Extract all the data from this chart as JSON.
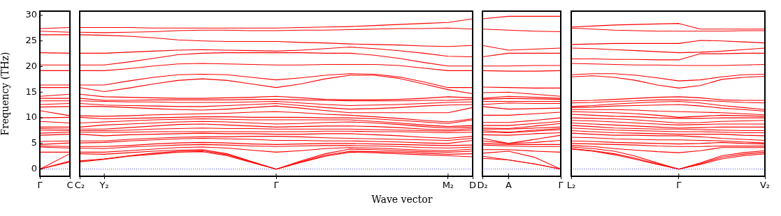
{
  "chart_data": [
    {
      "type": "line",
      "ylabel": "Frequency (THz)",
      "categories": [
        "Γ",
        "C"
      ],
      "ylim": [
        -1.4,
        30.8
      ],
      "yticks": [
        0,
        5,
        10,
        15,
        20,
        25,
        30
      ],
      "ref_lines": [
        {
          "axis": "y",
          "value": 0,
          "color": "#0000ff",
          "line_style": "dotted"
        }
      ],
      "series": [
        {
          "color": "#ff0000",
          "values": [
            27.4,
            27.6
          ]
        },
        {
          "color": "#ff0000",
          "values": [
            26.9,
            26.7
          ]
        },
        {
          "color": "#ff0000",
          "values": [
            26.2,
            26.2
          ]
        },
        {
          "color": "#ff0000",
          "values": [
            22.7,
            22.6
          ]
        },
        {
          "color": "#ff0000",
          "values": [
            20.3,
            20.3
          ]
        },
        {
          "color": "#ff0000",
          "values": [
            19.2,
            19.2
          ]
        },
        {
          "color": "#ff0000",
          "values": [
            16.4,
            16.4
          ]
        },
        {
          "color": "#ff0000",
          "values": [
            15.9,
            15.9
          ]
        },
        {
          "color": "#ff0000",
          "values": [
            14.2,
            14.6
          ]
        },
        {
          "color": "#ff0000",
          "values": [
            13.8,
            13.8
          ]
        },
        {
          "color": "#ff0000",
          "values": [
            13.3,
            13.3
          ]
        },
        {
          "color": "#ff0000",
          "values": [
            12.6,
            12.8
          ]
        },
        {
          "color": "#ff0000",
          "values": [
            12.1,
            12.2
          ]
        },
        {
          "color": "#ff0000",
          "values": [
            11.4,
            10.4
          ]
        },
        {
          "color": "#ff0000",
          "values": [
            10.0,
            10.1
          ]
        },
        {
          "color": "#ff0000",
          "values": [
            9.3,
            9.0
          ]
        },
        {
          "color": "#ff0000",
          "values": [
            8.2,
            8.2
          ]
        },
        {
          "color": "#ff0000",
          "values": [
            7.9,
            7.8
          ]
        },
        {
          "color": "#ff0000",
          "values": [
            7.6,
            7.5
          ]
        },
        {
          "color": "#ff0000",
          "values": [
            7.0,
            7.2
          ]
        },
        {
          "color": "#ff0000",
          "values": [
            6.6,
            6.8
          ]
        },
        {
          "color": "#ff0000",
          "values": [
            5.4,
            5.5
          ]
        },
        {
          "color": "#ff0000",
          "values": [
            4.8,
            5.1
          ]
        },
        {
          "color": "#ff0000",
          "values": [
            4.5,
            4.4
          ]
        },
        {
          "color": "#ff0000",
          "values": [
            4.3,
            4.1
          ]
        },
        {
          "color": "#ff0000",
          "values": [
            3.3,
            3.3
          ]
        },
        {
          "color": "#ff0000",
          "values": [
            0,
            3.0
          ]
        },
        {
          "color": "#ff0000",
          "values": [
            0,
            1.6
          ]
        },
        {
          "color": "#ff0000",
          "values": [
            0,
            1.4
          ]
        }
      ]
    },
    {
      "type": "line",
      "xlabel": "Wave vector",
      "tick_labels": "x",
      "categories": [
        "C₂",
        "Y₂",
        null,
        null,
        null,
        null,
        null,
        null,
        "Γ",
        null,
        null,
        null,
        null,
        null,
        null,
        "M₂",
        "D"
      ],
      "ylim": [
        -1.4,
        30.8
      ],
      "yticks": [
        0,
        5,
        10,
        15,
        20,
        25,
        30
      ],
      "ref_lines": [
        {
          "axis": "y",
          "value": 0,
          "color": "#0000ff",
          "line_style": "dotted"
        }
      ],
      "series": [
        {
          "color": "#ff0000",
          "values": [
            27.6,
            27.6,
            27.6,
            27.5,
            27.5,
            27.5,
            27.5,
            27.5,
            27.5,
            27.6,
            27.7,
            27.8,
            28.0,
            28.2,
            28.4,
            28.6,
            29.3
          ]
        },
        {
          "color": "#ff0000",
          "values": [
            26.7,
            26.6,
            26.7,
            26.8,
            27.0,
            27.1,
            27.1,
            27.0,
            27.0,
            27.1,
            27.1,
            27.2,
            27.3,
            27.4,
            27.4,
            27.5,
            27.3
          ]
        },
        {
          "color": "#ff0000",
          "values": [
            26.2,
            26.1,
            25.9,
            25.6,
            25.2,
            25.0,
            24.9,
            24.9,
            24.9,
            24.7,
            24.6,
            24.4,
            24.3,
            24.2,
            24.0,
            23.9,
            24.1
          ]
        },
        {
          "color": "#ff0000",
          "values": [
            22.6,
            22.6,
            22.8,
            23.0,
            23.2,
            23.3,
            23.2,
            23.1,
            23.0,
            23.2,
            23.5,
            23.8,
            23.5,
            23.1,
            22.6,
            22.0,
            21.9
          ]
        },
        {
          "color": "#ff0000",
          "values": [
            20.3,
            20.3,
            20.9,
            21.6,
            22.3,
            22.6,
            22.7,
            22.7,
            22.7,
            22.7,
            22.6,
            22.6,
            22.2,
            21.6,
            20.8,
            20.1,
            20.1
          ]
        },
        {
          "color": "#ff0000",
          "values": [
            19.2,
            19.2,
            19.6,
            20.1,
            20.5,
            20.6,
            20.5,
            20.4,
            20.3,
            20.3,
            20.4,
            20.4,
            20.4,
            20.2,
            19.7,
            19.2,
            19.2
          ]
        },
        {
          "color": "#ff0000",
          "values": [
            16.4,
            16.4,
            17.2,
            17.9,
            18.4,
            18.5,
            18.4,
            17.9,
            17.4,
            17.8,
            18.3,
            18.6,
            18.5,
            18.0,
            17.0,
            15.9,
            15.9
          ]
        },
        {
          "color": "#ff0000",
          "values": [
            15.9,
            15.1,
            15.8,
            16.6,
            17.3,
            17.6,
            17.3,
            16.6,
            15.9,
            16.6,
            17.6,
            18.3,
            18.3,
            17.7,
            16.6,
            15.5,
            14.7
          ]
        },
        {
          "color": "#ff0000",
          "values": [
            14.6,
            14.1,
            14.0,
            13.9,
            13.8,
            13.8,
            13.9,
            14.0,
            14.2,
            13.9,
            13.6,
            13.5,
            13.5,
            13.6,
            13.8,
            14.1,
            13.9
          ]
        },
        {
          "color": "#ff0000",
          "values": [
            13.8,
            13.4,
            13.4,
            13.5,
            13.5,
            13.5,
            13.5,
            13.6,
            13.6,
            13.5,
            13.4,
            13.3,
            13.3,
            13.3,
            13.4,
            13.4,
            13.6
          ]
        },
        {
          "color": "#ff0000",
          "values": [
            13.3,
            13.2,
            13.1,
            13.1,
            13.0,
            13.0,
            13.0,
            13.1,
            13.2,
            12.9,
            12.6,
            12.4,
            12.5,
            12.6,
            12.8,
            13.0,
            13.1
          ]
        },
        {
          "color": "#ff0000",
          "values": [
            12.8,
            12.5,
            12.4,
            12.3,
            12.2,
            12.2,
            12.4,
            12.6,
            12.8,
            12.4,
            12.0,
            11.7,
            11.8,
            12.0,
            12.3,
            12.5,
            12.6
          ]
        },
        {
          "color": "#ff0000",
          "values": [
            12.2,
            12.2,
            12.0,
            11.8,
            11.6,
            11.5,
            11.7,
            12.0,
            12.3,
            11.9,
            11.4,
            11.0,
            11.0,
            11.0,
            11.0,
            11.0,
            12.0
          ]
        },
        {
          "color": "#ff0000",
          "values": [
            10.4,
            10.3,
            10.4,
            10.6,
            10.7,
            10.8,
            10.9,
            11.1,
            11.2,
            11.0,
            10.7,
            10.5,
            10.2,
            9.9,
            9.5,
            9.2,
            9.8
          ]
        },
        {
          "color": "#ff0000",
          "values": [
            10.1,
            9.8,
            9.9,
            10.0,
            10.1,
            10.2,
            10.2,
            10.1,
            10.1,
            10.1,
            10.0,
            10.0,
            9.8,
            9.5,
            9.2,
            8.9,
            9.6
          ]
        },
        {
          "color": "#ff0000",
          "values": [
            9.0,
            9.2,
            9.4,
            9.6,
            9.7,
            9.8,
            9.7,
            9.6,
            9.6,
            9.6,
            9.6,
            9.6,
            9.3,
            9.0,
            8.6,
            8.3,
            8.5
          ]
        },
        {
          "color": "#ff0000",
          "values": [
            8.2,
            8.6,
            8.8,
            9.0,
            9.2,
            9.3,
            9.2,
            9.0,
            8.8,
            8.9,
            9.1,
            9.2,
            9.0,
            8.7,
            8.3,
            8.0,
            8.2
          ]
        },
        {
          "color": "#ff0000",
          "values": [
            7.8,
            7.8,
            8.1,
            8.4,
            8.7,
            8.8,
            8.6,
            8.4,
            8.2,
            8.3,
            8.4,
            8.4,
            8.3,
            8.1,
            7.8,
            7.6,
            7.9
          ]
        },
        {
          "color": "#ff0000",
          "values": [
            7.5,
            7.5,
            7.6,
            7.8,
            7.9,
            8.0,
            7.9,
            7.9,
            7.8,
            7.8,
            7.8,
            7.8,
            7.7,
            7.6,
            7.5,
            7.4,
            7.6
          ]
        },
        {
          "color": "#ff0000",
          "values": [
            7.2,
            7.2,
            7.2,
            7.3,
            7.3,
            7.3,
            7.3,
            7.3,
            7.3,
            7.3,
            7.4,
            7.4,
            7.3,
            7.3,
            7.2,
            7.1,
            7.2
          ]
        },
        {
          "color": "#ff0000",
          "values": [
            6.8,
            6.5,
            6.7,
            6.8,
            6.9,
            7.0,
            6.9,
            6.9,
            6.8,
            6.8,
            6.9,
            6.9,
            6.7,
            6.5,
            6.2,
            6.0,
            6.4
          ]
        },
        {
          "color": "#ff0000",
          "values": [
            5.5,
            5.5,
            5.8,
            6.0,
            6.2,
            6.3,
            6.3,
            6.4,
            6.4,
            6.3,
            6.1,
            6.0,
            5.9,
            5.8,
            5.7,
            5.6,
            6.0
          ]
        },
        {
          "color": "#ff0000",
          "values": [
            5.1,
            5.2,
            5.5,
            5.7,
            5.9,
            6.0,
            5.9,
            5.8,
            5.6,
            5.6,
            5.5,
            5.5,
            5.4,
            5.3,
            5.1,
            5.0,
            5.6
          ]
        },
        {
          "color": "#ff0000",
          "values": [
            4.4,
            4.4,
            4.6,
            4.9,
            5.1,
            5.2,
            5.1,
            4.9,
            4.8,
            4.9,
            5.0,
            5.0,
            4.9,
            4.8,
            4.7,
            4.6,
            4.7
          ]
        },
        {
          "color": "#ff0000",
          "values": [
            4.1,
            4.0,
            4.3,
            4.5,
            4.7,
            4.8,
            4.7,
            4.5,
            4.4,
            4.5,
            4.6,
            4.6,
            4.5,
            4.4,
            4.2,
            4.1,
            4.3
          ]
        },
        {
          "color": "#ff0000",
          "values": [
            3.3,
            3.3,
            3.6,
            3.9,
            4.2,
            4.3,
            4.1,
            3.7,
            3.3,
            3.6,
            4.0,
            4.2,
            4.1,
            3.9,
            3.7,
            3.6,
            3.9
          ]
        },
        {
          "color": "#ff0000",
          "values": [
            3.0,
            2.9,
            3.2,
            3.5,
            3.7,
            3.8,
            3.0,
            1.5,
            0,
            1.6,
            3.0,
            3.9,
            3.8,
            3.6,
            3.4,
            3.3,
            3.5
          ]
        },
        {
          "color": "#ff0000",
          "values": [
            1.6,
            2.0,
            2.6,
            3.1,
            3.5,
            3.6,
            2.8,
            1.4,
            0,
            1.4,
            2.7,
            3.5,
            3.4,
            3.3,
            3.1,
            2.9,
            3.0
          ]
        },
        {
          "color": "#ff0000",
          "values": [
            1.4,
            1.9,
            2.5,
            2.9,
            3.3,
            3.4,
            2.6,
            1.3,
            0,
            1.3,
            2.5,
            3.3,
            3.2,
            3.0,
            2.8,
            2.6,
            2.4
          ]
        }
      ]
    },
    {
      "type": "line",
      "tick_labels": "x",
      "categories": [
        "D₂",
        "A",
        null,
        "Γ"
      ],
      "ylim": [
        -1.4,
        30.8
      ],
      "yticks": [
        0,
        5,
        10,
        15,
        20,
        25,
        30
      ],
      "ref_lines": [
        {
          "axis": "y",
          "value": 0,
          "color": "#0000ff",
          "line_style": "dotted"
        }
      ],
      "series": [
        {
          "color": "#ff0000",
          "values": [
            29.3,
            29.8,
            29.8,
            29.8
          ]
        },
        {
          "color": "#ff0000",
          "values": [
            27.3,
            27.1,
            26.9,
            26.8
          ]
        },
        {
          "color": "#ff0000",
          "values": [
            24.1,
            23.2,
            23.4,
            23.6
          ]
        },
        {
          "color": "#ff0000",
          "values": [
            21.9,
            22.6,
            22.6,
            22.6
          ]
        },
        {
          "color": "#ff0000",
          "values": [
            20.1,
            20.1,
            20.2,
            20.2
          ]
        },
        {
          "color": "#ff0000",
          "values": [
            19.2,
            19.1,
            19.1,
            19.2
          ]
        },
        {
          "color": "#ff0000",
          "values": [
            16.0,
            15.9,
            15.8,
            15.8
          ]
        },
        {
          "color": "#ff0000",
          "values": [
            14.9,
            15.0,
            14.6,
            14.2
          ]
        },
        {
          "color": "#ff0000",
          "values": [
            13.8,
            14.2,
            14.0,
            13.8
          ]
        },
        {
          "color": "#ff0000",
          "values": [
            13.6,
            13.8,
            13.7,
            13.6
          ]
        },
        {
          "color": "#ff0000",
          "values": [
            13.2,
            13.2,
            13.2,
            13.2
          ]
        },
        {
          "color": "#ff0000",
          "values": [
            12.6,
            12.9,
            12.8,
            12.8
          ]
        },
        {
          "color": "#ff0000",
          "values": [
            12.2,
            11.7,
            11.8,
            11.9
          ]
        },
        {
          "color": "#ff0000",
          "values": [
            10.5,
            10.5,
            10.8,
            11.1
          ]
        },
        {
          "color": "#ff0000",
          "values": [
            9.1,
            9.1,
            9.5,
            10.0
          ]
        },
        {
          "color": "#ff0000",
          "values": [
            8.5,
            8.5,
            8.9,
            9.3
          ]
        },
        {
          "color": "#ff0000",
          "values": [
            8.0,
            7.9,
            8.4,
            8.9
          ]
        },
        {
          "color": "#ff0000",
          "values": [
            7.8,
            7.8,
            8.0,
            8.2
          ]
        },
        {
          "color": "#ff0000",
          "values": [
            7.5,
            7.2,
            7.6,
            7.9
          ]
        },
        {
          "color": "#ff0000",
          "values": [
            7.2,
            7.1,
            7.4,
            7.7
          ]
        },
        {
          "color": "#ff0000",
          "values": [
            6.7,
            6.6,
            6.9,
            7.1
          ]
        },
        {
          "color": "#ff0000",
          "values": [
            6.0,
            5.0,
            5.8,
            6.6
          ]
        },
        {
          "color": "#ff0000",
          "values": [
            5.5,
            5.0,
            5.2,
            5.6
          ]
        },
        {
          "color": "#ff0000",
          "values": [
            5.0,
            4.8,
            4.8,
            4.8
          ]
        },
        {
          "color": "#ff0000",
          "values": [
            4.7,
            4.5,
            4.4,
            4.4
          ]
        },
        {
          "color": "#ff0000",
          "values": [
            3.8,
            3.8,
            3.5,
            3.3
          ]
        },
        {
          "color": "#ff0000",
          "values": [
            3.1,
            3.5,
            2.3,
            0
          ]
        },
        {
          "color": "#ff0000",
          "values": [
            2.5,
            1.8,
            1.0,
            0
          ]
        },
        {
          "color": "#ff0000",
          "values": [
            2.1,
            1.8,
            1.0,
            0
          ]
        }
      ]
    },
    {
      "type": "line",
      "tick_labels": "x",
      "categories": [
        "L₂",
        null,
        null,
        null,
        null,
        "Γ",
        null,
        null,
        null,
        "V₂"
      ],
      "ylim": [
        -1.4,
        30.8
      ],
      "yticks": [
        0,
        5,
        10,
        15,
        20,
        25,
        30
      ],
      "ref_lines": [
        {
          "axis": "y",
          "value": 0,
          "color": "#0000ff",
          "line_style": "dotted"
        }
      ],
      "series": [
        {
          "color": "#ff0000",
          "values": [
            27.7,
            27.9,
            28.1,
            28.2,
            28.3,
            28.4,
            27.3,
            27.3,
            27.3,
            27.3
          ]
        },
        {
          "color": "#ff0000",
          "values": [
            27.5,
            27.3,
            27.1,
            27.0,
            26.9,
            26.9,
            26.9,
            26.9,
            27.0,
            27.0
          ]
        },
        {
          "color": "#ff0000",
          "values": [
            24.3,
            24.4,
            24.5,
            24.5,
            24.5,
            24.5,
            25.1,
            25.0,
            24.8,
            24.6
          ]
        },
        {
          "color": "#ff0000",
          "values": [
            23.6,
            23.5,
            23.3,
            23.1,
            22.9,
            22.7,
            22.8,
            23.0,
            23.3,
            23.6
          ]
        },
        {
          "color": "#ff0000",
          "values": [
            21.5,
            21.5,
            21.4,
            21.4,
            21.3,
            21.3,
            22.5,
            22.5,
            22.6,
            22.6
          ]
        },
        {
          "color": "#ff0000",
          "values": [
            20.6,
            20.5,
            20.4,
            20.3,
            20.3,
            20.2,
            20.2,
            20.2,
            20.3,
            20.4
          ]
        },
        {
          "color": "#ff0000",
          "values": [
            18.4,
            18.6,
            18.6,
            18.3,
            17.8,
            17.2,
            17.4,
            18.0,
            18.4,
            18.5
          ]
        },
        {
          "color": "#ff0000",
          "values": [
            18.0,
            18.2,
            17.9,
            17.3,
            16.4,
            15.8,
            16.3,
            17.5,
            17.9,
            18.1
          ]
        },
        {
          "color": "#ff0000",
          "values": [
            13.3,
            13.4,
            13.6,
            13.8,
            14.0,
            14.1,
            13.9,
            13.5,
            13.4,
            13.4
          ]
        },
        {
          "color": "#ff0000",
          "values": [
            12.9,
            13.0,
            13.2,
            13.3,
            13.5,
            13.5,
            13.4,
            13.2,
            13.0,
            12.9
          ]
        },
        {
          "color": "#ff0000",
          "values": [
            12.2,
            12.4,
            12.7,
            12.9,
            13.1,
            13.2,
            12.9,
            12.4,
            12.0,
            11.6
          ]
        },
        {
          "color": "#ff0000",
          "values": [
            12.0,
            12.1,
            12.3,
            12.4,
            12.5,
            12.6,
            12.3,
            11.9,
            11.6,
            11.3
          ]
        },
        {
          "color": "#ff0000",
          "values": [
            11.6,
            11.6,
            11.6,
            11.5,
            11.3,
            11.2,
            11.1,
            11.0,
            10.8,
            10.6
          ]
        },
        {
          "color": "#ff0000",
          "values": [
            11.2,
            11.1,
            11.0,
            10.8,
            10.5,
            10.1,
            10.3,
            10.5,
            10.4,
            10.3
          ]
        },
        {
          "color": "#ff0000",
          "values": [
            10.7,
            10.5,
            10.3,
            10.2,
            10.0,
            9.9,
            9.9,
            10.0,
            10.0,
            10.0
          ]
        },
        {
          "color": "#ff0000",
          "values": [
            10.0,
            9.9,
            9.8,
            9.6,
            9.3,
            9.0,
            9.1,
            9.3,
            9.4,
            9.5
          ]
        },
        {
          "color": "#ff0000",
          "values": [
            9.5,
            9.4,
            9.2,
            9.0,
            8.8,
            8.6,
            8.7,
            8.8,
            8.8,
            8.8
          ]
        },
        {
          "color": "#ff0000",
          "values": [
            9.0,
            8.8,
            8.6,
            8.4,
            8.2,
            8.0,
            8.1,
            8.2,
            8.2,
            8.2
          ]
        },
        {
          "color": "#ff0000",
          "values": [
            8.5,
            8.3,
            8.0,
            7.9,
            7.8,
            7.8,
            7.7,
            7.6,
            7.5,
            7.5
          ]
        },
        {
          "color": "#ff0000",
          "values": [
            8.0,
            7.8,
            7.6,
            7.5,
            7.4,
            7.3,
            7.3,
            7.2,
            7.1,
            7.1
          ]
        },
        {
          "color": "#ff0000",
          "values": [
            7.5,
            7.3,
            7.1,
            7.0,
            6.9,
            6.8,
            6.8,
            6.8,
            6.6,
            6.5
          ]
        },
        {
          "color": "#ff0000",
          "values": [
            7.0,
            6.8,
            6.6,
            6.6,
            6.5,
            6.5,
            6.3,
            6.0,
            5.8,
            5.6
          ]
        },
        {
          "color": "#ff0000",
          "values": [
            6.2,
            6.1,
            5.9,
            5.8,
            5.7,
            5.7,
            5.6,
            5.5,
            5.3,
            5.1
          ]
        },
        {
          "color": "#ff0000",
          "values": [
            5.5,
            5.4,
            5.2,
            5.1,
            5.0,
            4.9,
            5.0,
            5.2,
            5.0,
            4.9
          ]
        },
        {
          "color": "#ff0000",
          "values": [
            5.0,
            4.9,
            4.8,
            4.7,
            4.5,
            4.4,
            4.4,
            4.5,
            4.5,
            4.5
          ]
        },
        {
          "color": "#ff0000",
          "values": [
            4.6,
            4.4,
            4.0,
            3.7,
            3.4,
            3.2,
            3.6,
            4.2,
            4.2,
            4.2
          ]
        },
        {
          "color": "#ff0000",
          "values": [
            4.3,
            4.0,
            3.5,
            2.5,
            1.2,
            0,
            1.2,
            2.6,
            3.2,
            3.6
          ]
        },
        {
          "color": "#ff0000",
          "values": [
            4.0,
            3.6,
            3.0,
            2.1,
            1.0,
            0,
            1.0,
            2.3,
            2.9,
            3.3
          ]
        },
        {
          "color": "#ff0000",
          "values": [
            3.9,
            3.5,
            2.8,
            1.9,
            0.9,
            0,
            0.9,
            2.0,
            2.6,
            3.0
          ]
        }
      ]
    }
  ]
}
